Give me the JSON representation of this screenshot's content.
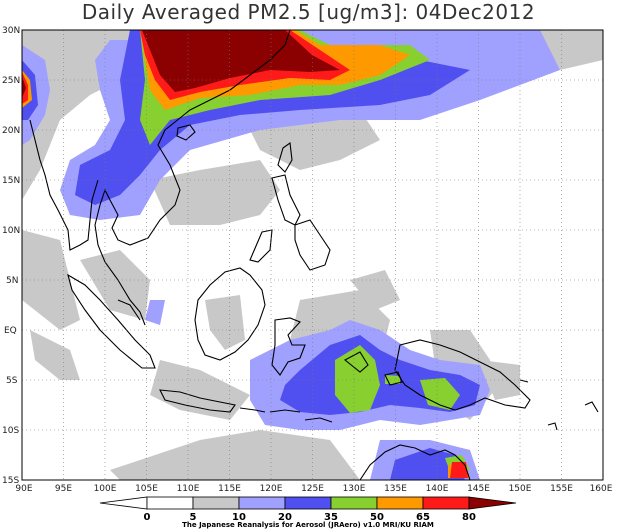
{
  "title": "Daily Averaged PM2.5 [ug/m3]: 04Dec2012",
  "map": {
    "lon_labels": [
      "90E",
      "95E",
      "100E",
      "105E",
      "110E",
      "115E",
      "120E",
      "125E",
      "130E",
      "135E",
      "140E",
      "145E",
      "150E",
      "155E",
      "160E"
    ],
    "lat_labels": [
      "30N",
      "25N",
      "20N",
      "15N",
      "10N",
      "5N",
      "EQ",
      "5S",
      "10S",
      "15S"
    ],
    "grid": true
  },
  "colorbar": {
    "levels": [
      "0",
      "5",
      "10",
      "20",
      "35",
      "50",
      "65",
      "80"
    ],
    "colors": {
      "lt0": "#ffffff",
      "c0_5": "#ffffff",
      "c5_10": "#c8c8c8",
      "c10_20": "#a0a0ff",
      "c20_35": "#5050f0",
      "c35_50": "#88d030",
      "c50_65": "#ff9900",
      "c65_80": "#ff1a1a",
      "gt80": "#8b0000"
    },
    "credit": "The Japanese Reanalysis for Aerosol (JRAero) v1.0 MRI/KU RIAM"
  }
}
